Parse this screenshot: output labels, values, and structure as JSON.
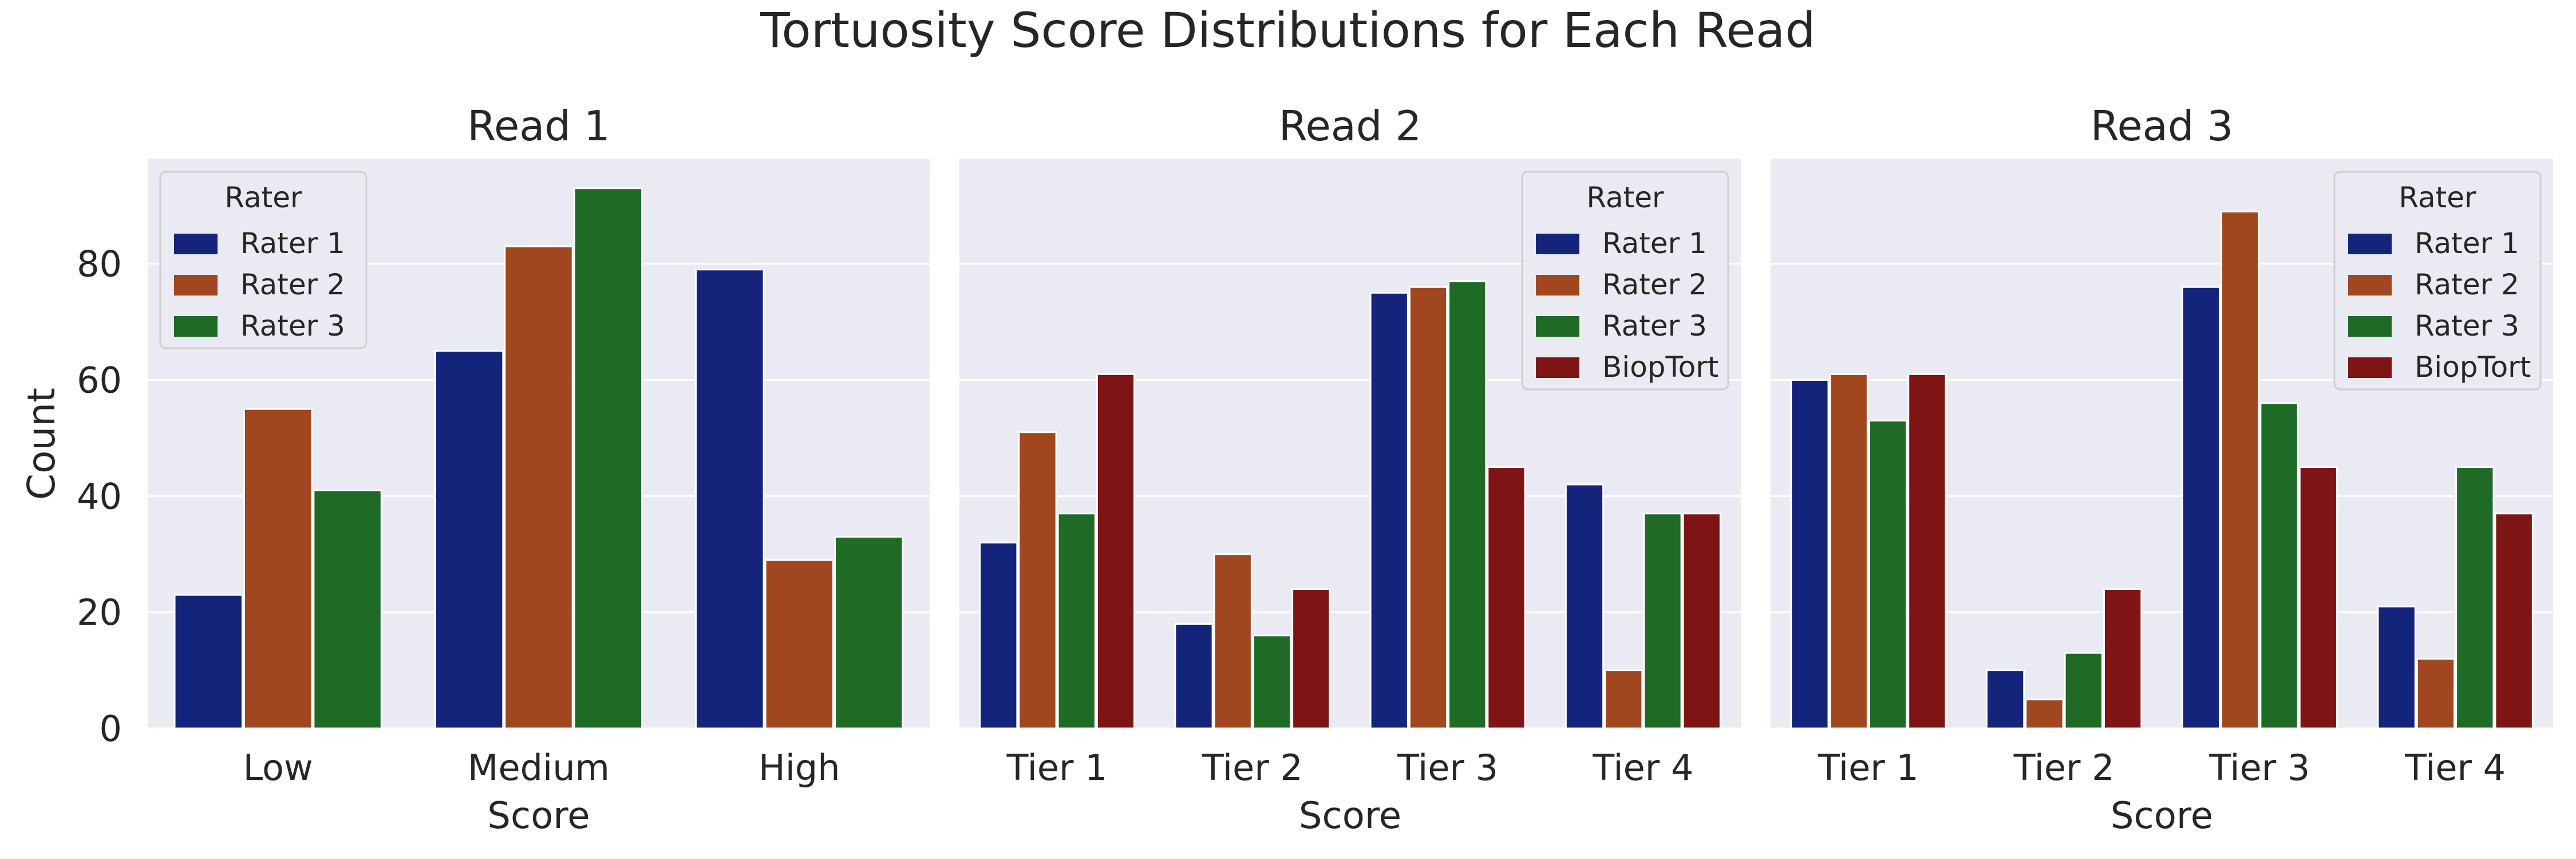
{
  "title": "Tortuosity Score Distributions for Each Read",
  "colors": {
    "Rater 1": "#13247a",
    "Rater 2": "#a1471f",
    "Rater 3": "#1f6b26",
    "BiopTort": "#7f1414",
    "panel_bg": "#eaeaf2",
    "grid": "#ffffff"
  },
  "legend_title": "Rater",
  "chart_data": [
    {
      "type": "bar",
      "title": "Read 1",
      "xlabel": "Score",
      "ylabel": "Count",
      "ylim": [
        0,
        98
      ],
      "yticks": [
        0,
        20,
        40,
        60,
        80
      ],
      "grid": true,
      "legend_position": "top-left",
      "categories": [
        "Low",
        "Medium",
        "High"
      ],
      "series": [
        {
          "name": "Rater 1",
          "values": [
            23,
            65,
            79
          ]
        },
        {
          "name": "Rater 2",
          "values": [
            55,
            83,
            29
          ]
        },
        {
          "name": "Rater 3",
          "values": [
            41,
            93,
            33
          ]
        }
      ]
    },
    {
      "type": "bar",
      "title": "Read 2",
      "xlabel": "Score",
      "ylabel": "",
      "ylim": [
        0,
        98
      ],
      "yticks": [
        0,
        20,
        40,
        60,
        80
      ],
      "grid": true,
      "legend_position": "top-right",
      "categories": [
        "Tier 1",
        "Tier 2",
        "Tier 3",
        "Tier 4"
      ],
      "series": [
        {
          "name": "Rater 1",
          "values": [
            32,
            18,
            75,
            42
          ]
        },
        {
          "name": "Rater 2",
          "values": [
            51,
            30,
            76,
            10
          ]
        },
        {
          "name": "Rater 3",
          "values": [
            37,
            16,
            77,
            37
          ]
        },
        {
          "name": "BiopTort",
          "values": [
            61,
            24,
            45,
            37
          ]
        }
      ]
    },
    {
      "type": "bar",
      "title": "Read 3",
      "xlabel": "Score",
      "ylabel": "",
      "ylim": [
        0,
        98
      ],
      "yticks": [
        0,
        20,
        40,
        60,
        80
      ],
      "grid": true,
      "legend_position": "top-right",
      "categories": [
        "Tier 1",
        "Tier 2",
        "Tier 3",
        "Tier 4"
      ],
      "series": [
        {
          "name": "Rater 1",
          "values": [
            60,
            10,
            76,
            21
          ]
        },
        {
          "name": "Rater 2",
          "values": [
            61,
            5,
            89,
            12
          ]
        },
        {
          "name": "Rater 3",
          "values": [
            53,
            13,
            56,
            45
          ]
        },
        {
          "name": "BiopTort",
          "values": [
            61,
            24,
            45,
            37
          ]
        }
      ]
    }
  ]
}
